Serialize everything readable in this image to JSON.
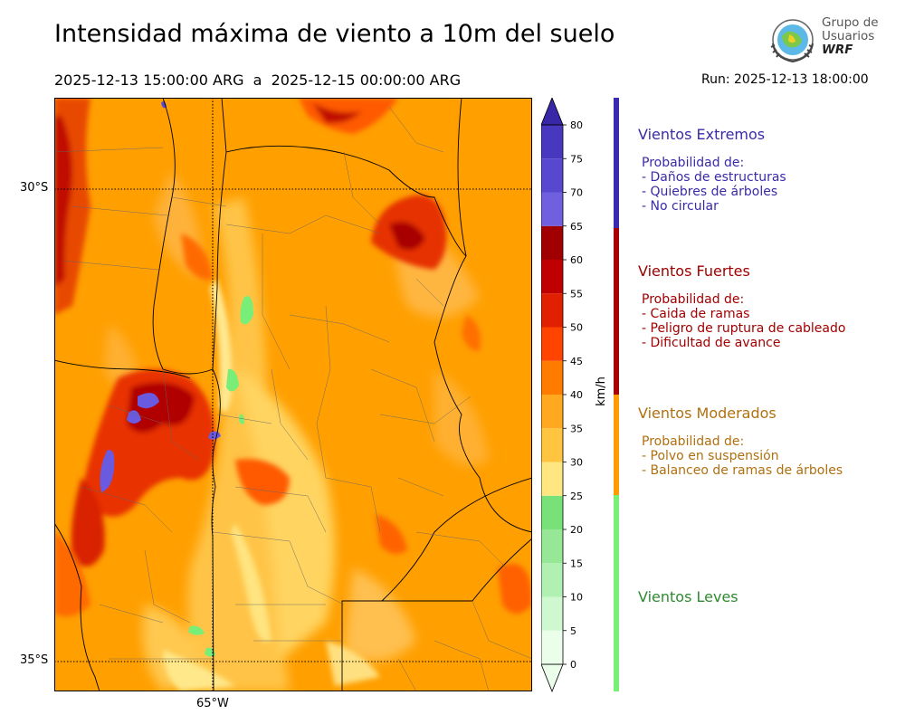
{
  "header": {
    "title": "Intensidad máxima de viento a 10m del suelo",
    "period": "2025-12-13 15:00:00 ARG  a  2025-12-15 00:00:00 ARG",
    "run": "Run: 2025-12-13 18:00:00"
  },
  "logo": {
    "line1": "Grupo de",
    "line2": "Usuarios",
    "line3": "WRF",
    "icon": "globe-emblem-icon"
  },
  "map": {
    "lat_labels": [
      "30°S",
      "35°S"
    ],
    "lon_labels": [
      "65°W"
    ],
    "field_description_colors": {
      "calm_green": "#78f078",
      "yellow": "#ffe080",
      "light_orange": "#ffc040",
      "orange": "#ff9c00",
      "dark_orange": "#ff6a00",
      "red": "#dd2200",
      "dark_red": "#a80000",
      "violet": "#5a50e0"
    }
  },
  "colorbar": {
    "unit": "km/h",
    "ticks": [
      "0",
      "5",
      "10",
      "15",
      "20",
      "25",
      "30",
      "35",
      "40",
      "45",
      "50",
      "55",
      "60",
      "65",
      "70",
      "75",
      "80"
    ],
    "colors": [
      "#eafeea",
      "#d0f8d0",
      "#b0f0b0",
      "#96e896",
      "#78e278",
      "#ffe680",
      "#ffc440",
      "#ffa820",
      "#ff7c00",
      "#ff4400",
      "#e02000",
      "#c00000",
      "#a00000",
      "#7060e0",
      "#5848d0",
      "#4838c0",
      "#3828a8"
    ]
  },
  "legend": {
    "extremos": {
      "title": "Vientos Extremos",
      "body": "Probabilidad de:\n- Daños de estructuras\n- Quiebres de árboles\n- No circular",
      "color": "#3a2aa8"
    },
    "fuertes": {
      "title": "Vientos Fuertes",
      "body": "Probabilidad de:\n- Caida de ramas\n- Peligro de ruptura de cableado\n- Dificultad de avance",
      "color": "#a00000"
    },
    "moderados": {
      "title": "Vientos Moderados",
      "body": "Probabilidad de:\n- Polvo en suspensión\n- Balanceo de ramas de árboles",
      "color": "#b07010"
    },
    "leves": {
      "title": "Vientos Leves",
      "color": "#2e8b2e"
    }
  }
}
